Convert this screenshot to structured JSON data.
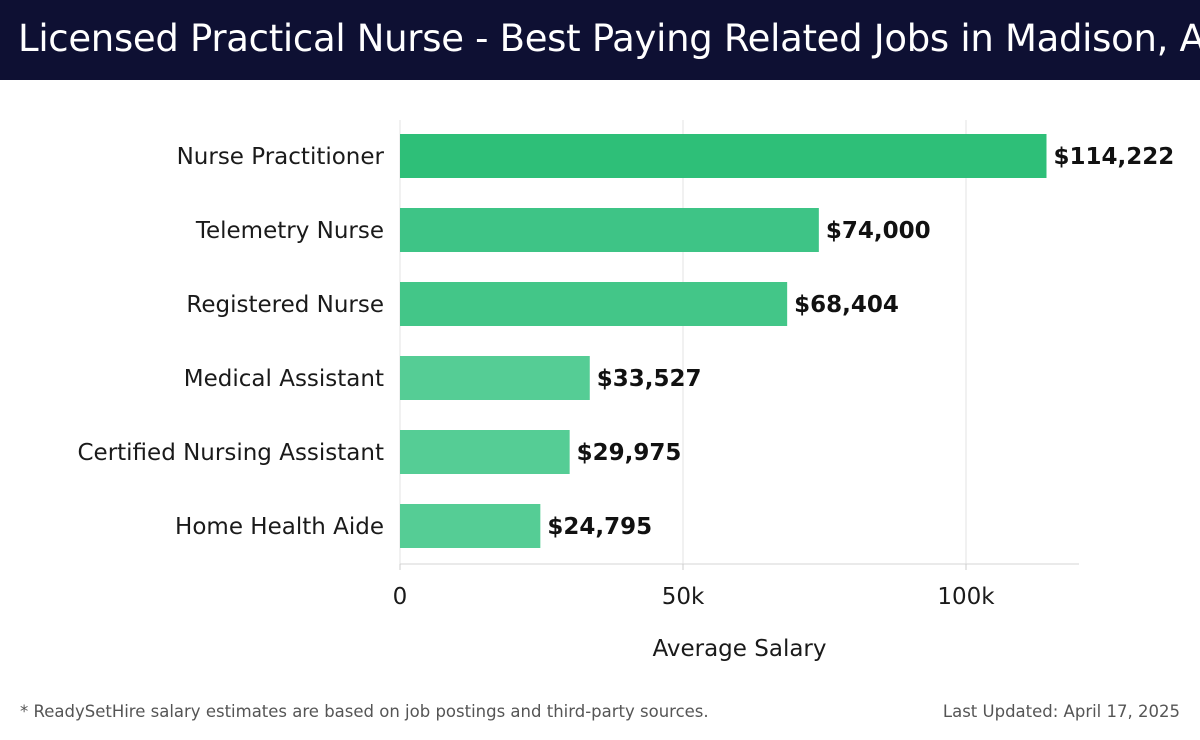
{
  "title": "Licensed Practical Nurse - Best Paying Related Jobs in Madison, AL",
  "footer": {
    "note": "* ReadySetHire salary estimates are based on job postings and third-party sources.",
    "updated": "Last Updated: April 17, 2025"
  },
  "chart_data": {
    "type": "bar",
    "orientation": "horizontal",
    "categories": [
      "Nurse Practitioner",
      "Telemetry Nurse",
      "Registered Nurse",
      "Medical Assistant",
      "Certified Nursing Assistant",
      "Home Health Aide"
    ],
    "values": [
      114222,
      74000,
      68404,
      33527,
      29975,
      24795
    ],
    "value_labels": [
      "$114,222",
      "$74,000",
      "$68,404",
      "$33,527",
      "$29,975",
      "$24,795"
    ],
    "colors": [
      "#2ebf78",
      "#3ec486",
      "#43c688",
      "#55cd95",
      "#55cd95",
      "#55cd95"
    ],
    "xlabel": "Average Salary",
    "ylabel": "",
    "xlim": [
      0,
      120000
    ],
    "xticks": [
      0,
      50000,
      100000
    ],
    "xtick_labels": [
      "0",
      "50k",
      "100k"
    ],
    "grid": true
  }
}
